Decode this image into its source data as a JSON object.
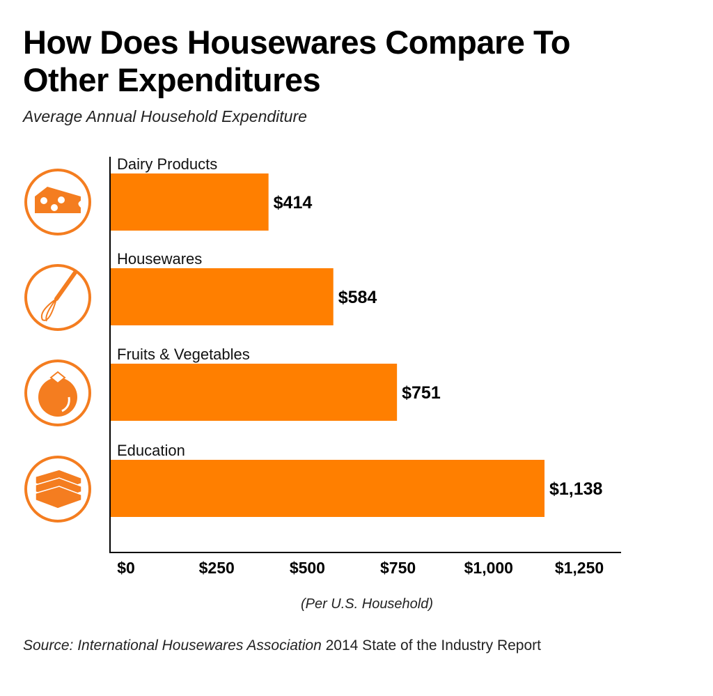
{
  "colors": {
    "bar": "#FF7F00",
    "icon": "#F47D20",
    "axis": "#000000"
  },
  "chart_data": {
    "type": "bar",
    "orientation": "horizontal",
    "title": "How Does Housewares Compare To Other Expenditures",
    "subtitle": "Average Annual Household Expenditure",
    "xlabel": "(Per U.S. Household)",
    "ylabel": "",
    "categories": [
      "Dairy Products",
      "Housewares",
      "Fruits & Vegetables",
      "Education"
    ],
    "values": [
      414,
      584,
      751,
      1138
    ],
    "data_labels": [
      "$414",
      "$584",
      "$751",
      "$1,138"
    ],
    "icons": [
      "cheese-icon",
      "whisk-icon",
      "tomato-icon",
      "books-icon"
    ],
    "xlim": [
      0,
      1250
    ],
    "xticks": [
      0,
      250,
      500,
      750,
      1000,
      1250
    ],
    "xtick_labels": [
      "$0",
      "$250",
      "$500",
      "$750",
      "$1,000",
      "$1,250"
    ],
    "grid": false,
    "legend": "none"
  },
  "source": {
    "prefix": "Source: International Housewares Association",
    "suffix": " 2014 State of the Industry Report"
  }
}
